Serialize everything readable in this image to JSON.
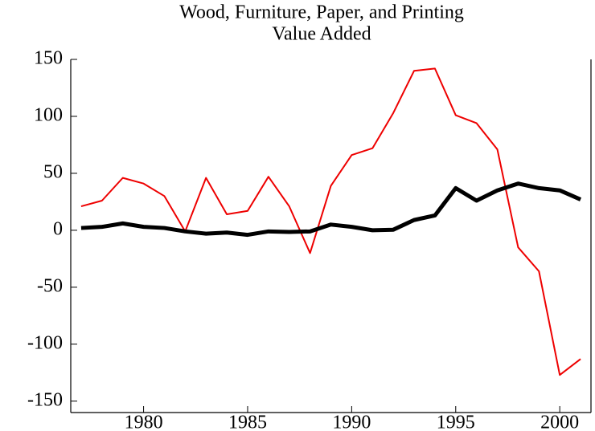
{
  "chart_data": {
    "type": "line",
    "title": "Wood, Furniture, Paper, and Printing",
    "subtitle": "Value Added",
    "x": [
      1977,
      1978,
      1979,
      1980,
      1981,
      1982,
      1983,
      1984,
      1985,
      1986,
      1987,
      1988,
      1989,
      1990,
      1991,
      1992,
      1993,
      1994,
      1995,
      1996,
      1997,
      1998,
      1999,
      2000,
      2001
    ],
    "series": [
      {
        "color": "#ee0000",
        "width": 2,
        "values": [
          21,
          26,
          46,
          41,
          30,
          -1,
          46,
          14,
          17,
          47,
          21,
          -20,
          39,
          66,
          72,
          103,
          140,
          142,
          101,
          94,
          71,
          -15,
          -36,
          -127,
          -113
        ]
      },
      {
        "color": "#000000",
        "width": 5,
        "values": [
          2,
          3,
          6,
          3,
          2,
          -1,
          -3,
          -2,
          -4,
          -1,
          -1.5,
          -1,
          5,
          3,
          0,
          0.5,
          9,
          13,
          37,
          26,
          35,
          41,
          37,
          35,
          27
        ]
      }
    ],
    "xlim": [
      1976.5,
      2001.5
    ],
    "xticks": [
      1980,
      1985,
      1990,
      1995,
      2000
    ],
    "ylim": [
      -160,
      150
    ],
    "yticks": [
      -150,
      -100,
      -50,
      0,
      50,
      100,
      150
    ],
    "grid": false
  }
}
